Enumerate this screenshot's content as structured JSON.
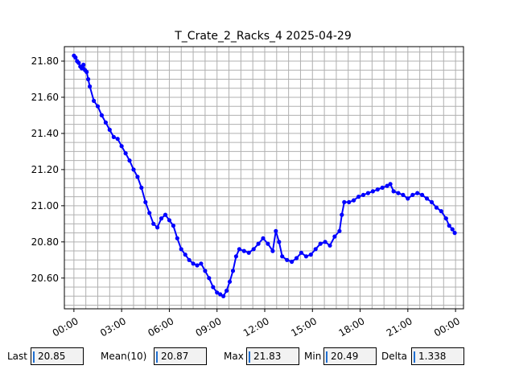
{
  "chart_data": {
    "type": "line",
    "title": "T_Crate_2_Racks_4 2025-04-29",
    "xlabel": "",
    "ylabel": "",
    "x_ticks": [
      "00:00",
      "03:00",
      "06:00",
      "09:00",
      "12:00",
      "15:00",
      "18:00",
      "21:00",
      "00:00"
    ],
    "x_tick_hours": [
      0,
      3,
      6,
      9,
      12,
      15,
      18,
      21,
      24
    ],
    "xlim": [
      -0.6,
      24.5
    ],
    "y_ticks": [
      "20.60",
      "20.80",
      "21.00",
      "21.20",
      "21.40",
      "21.60",
      "21.80"
    ],
    "ylim": [
      20.43,
      21.88
    ],
    "grid": true,
    "series": [
      {
        "color": "#0000ff",
        "x": [
          0.0,
          0.1,
          0.2,
          0.3,
          0.4,
          0.5,
          0.6,
          0.7,
          0.8,
          0.9,
          1.0,
          1.25,
          1.5,
          1.75,
          2.0,
          2.25,
          2.5,
          2.75,
          3.0,
          3.25,
          3.5,
          3.75,
          4.0,
          4.25,
          4.5,
          4.75,
          5.0,
          5.25,
          5.5,
          5.75,
          6.0,
          6.25,
          6.5,
          6.75,
          7.0,
          7.25,
          7.5,
          7.75,
          8.0,
          8.25,
          8.5,
          8.75,
          9.0,
          9.2,
          9.4,
          9.6,
          9.8,
          10.0,
          10.2,
          10.4,
          10.7,
          11.0,
          11.3,
          11.6,
          11.9,
          12.2,
          12.5,
          12.7,
          12.9,
          13.1,
          13.4,
          13.7,
          14.0,
          14.3,
          14.6,
          14.9,
          15.2,
          15.5,
          15.8,
          16.1,
          16.4,
          16.7,
          16.85,
          17.0,
          17.3,
          17.6,
          17.9,
          18.2,
          18.5,
          18.8,
          19.1,
          19.4,
          19.7,
          19.9,
          20.1,
          20.4,
          20.7,
          21.0,
          21.3,
          21.6,
          21.9,
          22.2,
          22.5,
          22.8,
          23.1,
          23.4,
          23.6,
          23.8,
          23.95
        ],
        "y": [
          21.83,
          21.82,
          21.8,
          21.79,
          21.77,
          21.76,
          21.78,
          21.75,
          21.74,
          21.7,
          21.66,
          21.58,
          21.55,
          21.5,
          21.46,
          21.42,
          21.38,
          21.37,
          21.33,
          21.29,
          21.25,
          21.2,
          21.16,
          21.1,
          21.02,
          20.96,
          20.9,
          20.88,
          20.93,
          20.95,
          20.92,
          20.89,
          20.82,
          20.76,
          20.73,
          20.7,
          20.68,
          20.67,
          20.68,
          20.64,
          20.6,
          20.55,
          20.52,
          20.51,
          20.5,
          20.53,
          20.58,
          20.64,
          20.72,
          20.76,
          20.75,
          20.74,
          20.76,
          20.79,
          20.82,
          20.79,
          20.75,
          20.86,
          20.8,
          20.72,
          20.7,
          20.69,
          20.71,
          20.74,
          20.72,
          20.73,
          20.76,
          20.79,
          20.8,
          20.78,
          20.83,
          20.86,
          20.95,
          21.02,
          21.02,
          21.03,
          21.05,
          21.06,
          21.07,
          21.08,
          21.09,
          21.1,
          21.11,
          21.12,
          21.08,
          21.07,
          21.06,
          21.04,
          21.06,
          21.07,
          21.06,
          21.04,
          21.02,
          20.99,
          20.97,
          20.93,
          20.89,
          20.87,
          20.85
        ]
      }
    ]
  },
  "stats": {
    "last_label": "Last",
    "last_value": "20.85",
    "mean_label": "Mean(10)",
    "mean_value": "20.87",
    "max_label": "Max",
    "max_value": "21.83",
    "min_label": "Min",
    "min_value": "20.49",
    "delta_label": "Delta",
    "delta_value": "1.338"
  }
}
